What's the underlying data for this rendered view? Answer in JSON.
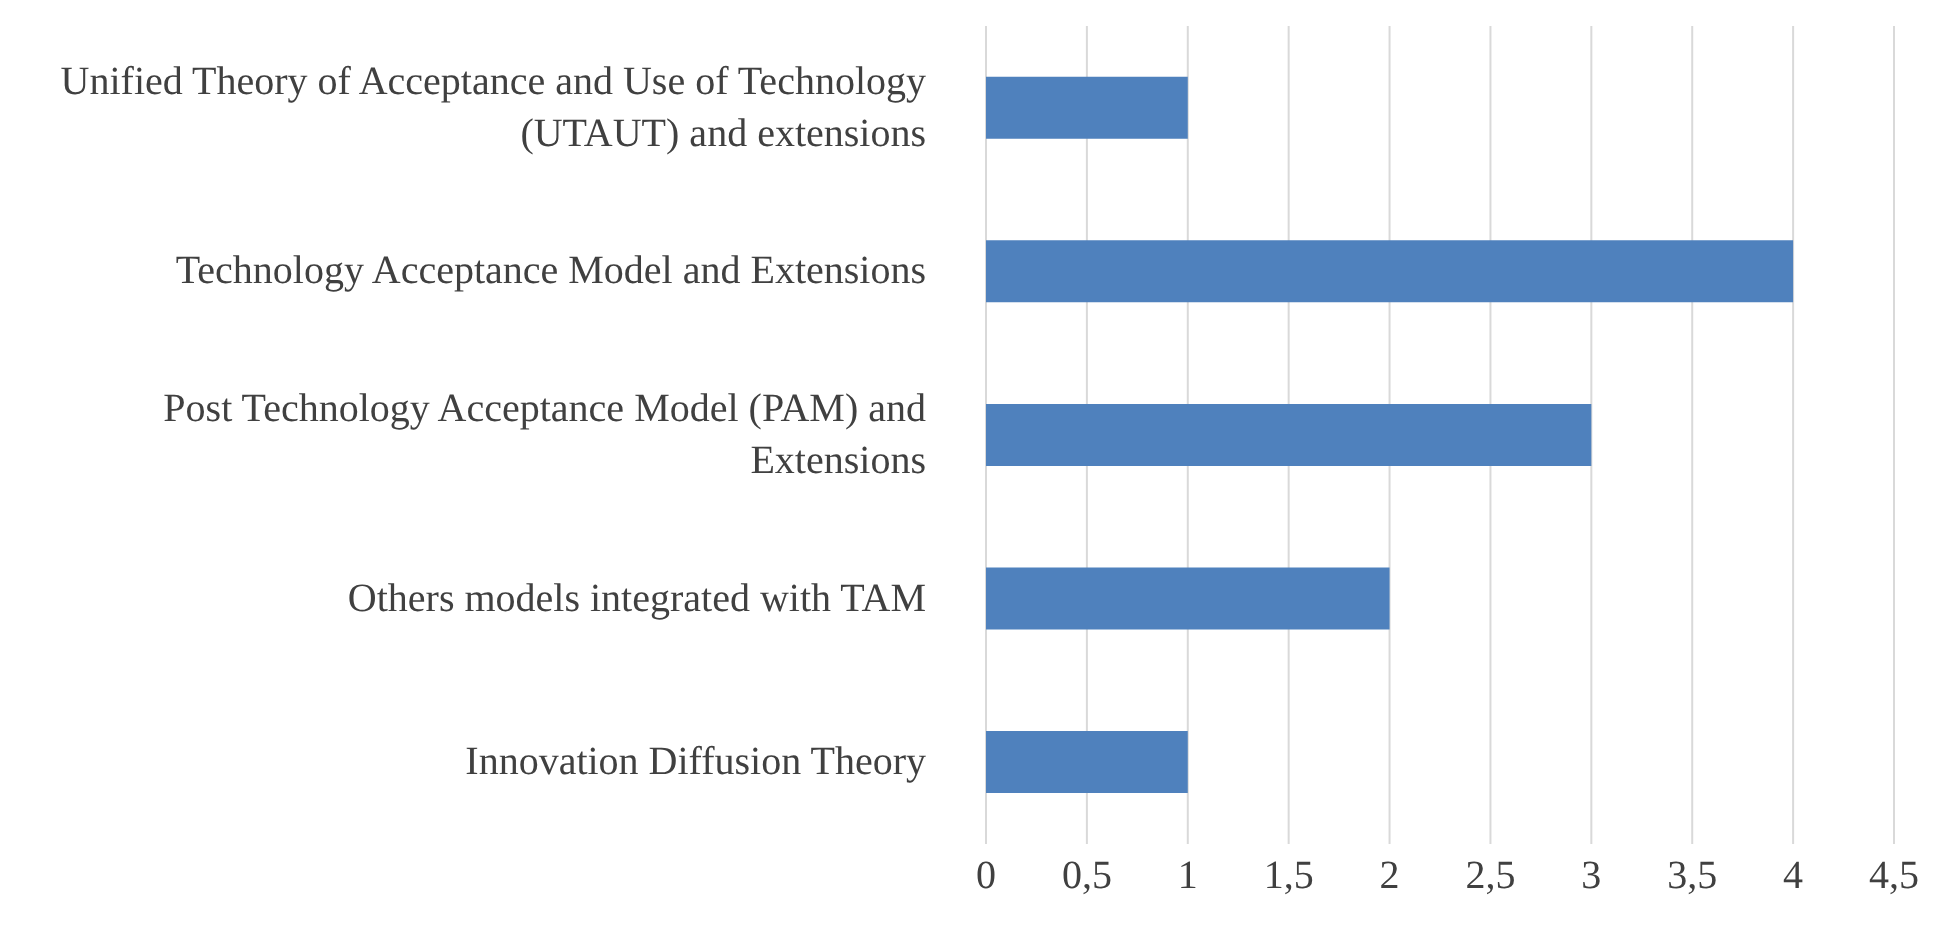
{
  "chart_data": {
    "type": "bar",
    "orientation": "horizontal",
    "categories": [
      "Unified Theory of Acceptance and Use of Technology (UTAUT) and extensions",
      "Technology Acceptance Model and Extensions",
      "Post Technology Acceptance Model (PAM) and Extensions",
      "Others models integrated with TAM",
      "Innovation Diffusion Theory"
    ],
    "values": [
      1,
      4,
      3,
      2,
      1
    ],
    "color": "#4f81bd",
    "xlim": [
      0,
      4.5
    ],
    "xticks": [
      0,
      {
        "value": 0.5,
        "label": "0,5"
      },
      1,
      {
        "value": 1.5,
        "label": "1,5"
      },
      2,
      {
        "value": 2.5,
        "label": "2,5"
      },
      3,
      {
        "value": 3.5,
        "label": "3,5"
      },
      4,
      {
        "value": 4.5,
        "label": "4,5"
      }
    ],
    "grid": "x"
  }
}
